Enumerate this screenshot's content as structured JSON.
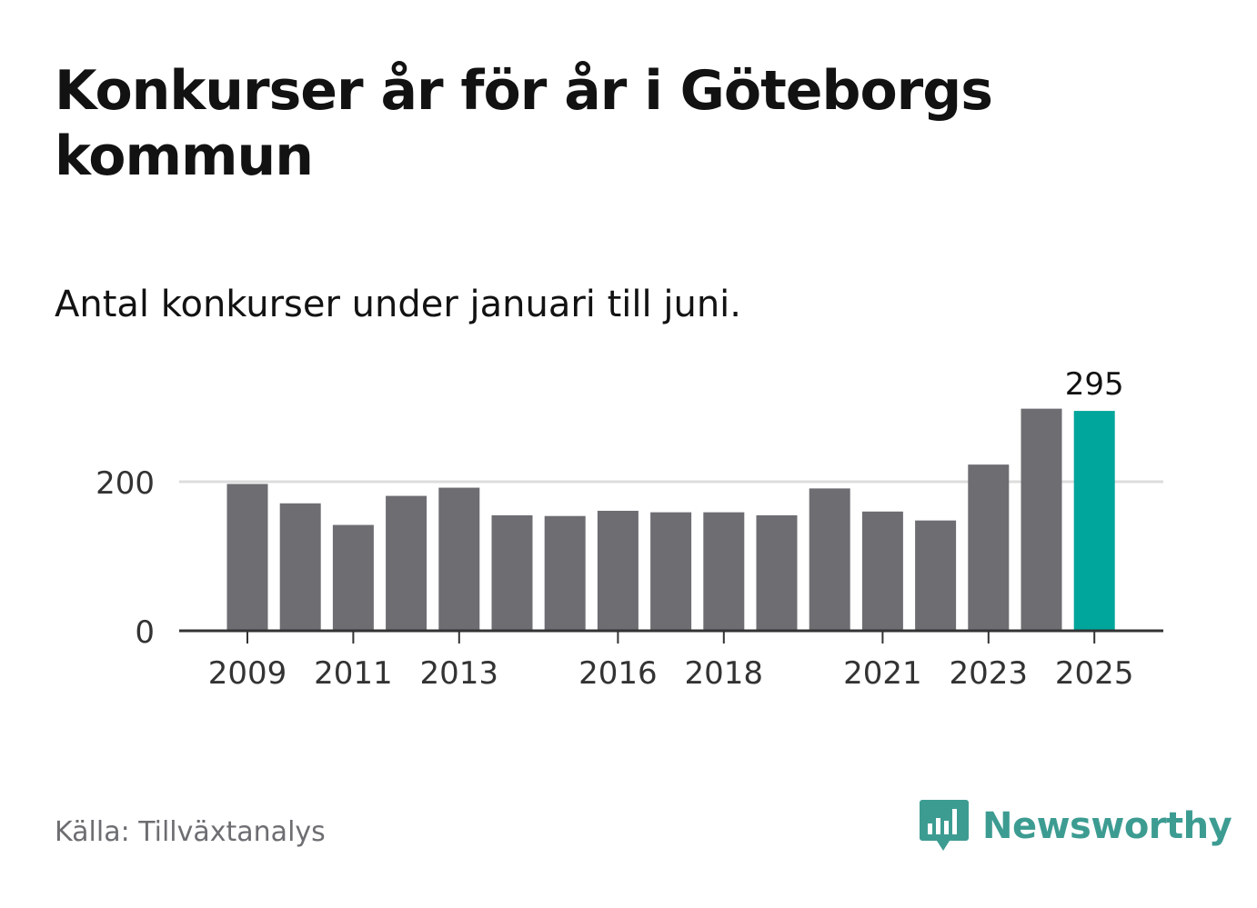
{
  "header": {
    "title": "Konkurser år för år i Göteborgs kommun",
    "subtitle": "Antal konkurser under januari till juni."
  },
  "footer": {
    "source": "Källa: Tillväxtanalys",
    "brand": "Newsworthy",
    "logo_icon": "bar-chart-speech-bubble-icon"
  },
  "colors": {
    "bar": "#6e6d72",
    "highlight": "#00a59b",
    "axis": "#333333",
    "grid": "#dddddd",
    "brand": "#3d9c92"
  },
  "chart_data": {
    "type": "bar",
    "categories": [
      "2009",
      "2010",
      "2011",
      "2012",
      "2013",
      "2014",
      "2015",
      "2016",
      "2017",
      "2018",
      "2019",
      "2020",
      "2021",
      "2022",
      "2023",
      "2024",
      "2025"
    ],
    "values": [
      197,
      171,
      142,
      181,
      192,
      155,
      154,
      161,
      159,
      159,
      155,
      191,
      160,
      148,
      223,
      298,
      295
    ],
    "x_tick_labels": [
      "2009",
      "2011",
      "2013",
      "2016",
      "2018",
      "2021",
      "2023",
      "2025"
    ],
    "y_ticks": [
      0,
      200
    ],
    "ylim": [
      0,
      310
    ],
    "highlight_category": "2025",
    "annotation": {
      "category": "2025",
      "text": "295"
    },
    "grid": true,
    "xlabel": "",
    "ylabel": ""
  }
}
